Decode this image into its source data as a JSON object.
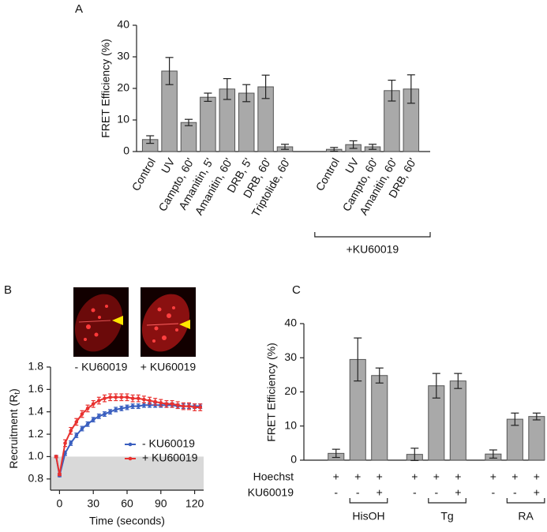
{
  "chart_data": [
    {
      "panel": "A",
      "type": "bar",
      "ylabel": "FRET Efficiency (%)",
      "categories": [
        "Control",
        "UV",
        "Campto, 60'",
        "Amanitin, 5'",
        "Amanitin, 60'",
        "DRB, 5'",
        "DRB, 60'",
        "Triptolide, 60'",
        null,
        "Control",
        "UV",
        "Campto, 60'",
        "Amanitin, 60'",
        "DRB, 60'"
      ],
      "values": [
        3.8,
        25.5,
        9.2,
        17.2,
        19.8,
        18.5,
        20.5,
        1.5,
        null,
        0.7,
        2.2,
        1.5,
        19.3,
        19.8
      ],
      "errors": [
        1.2,
        4.3,
        1.0,
        1.3,
        3.3,
        2.7,
        3.7,
        0.8,
        null,
        0.6,
        1.2,
        0.8,
        3.3,
        4.5
      ],
      "color": "#a9a9a9",
      "ylim": [
        0,
        40
      ],
      "yticks": [
        0,
        10,
        20,
        30,
        40
      ],
      "bracket_label": "+KU60019"
    },
    {
      "panel": "B",
      "type": "line",
      "images": [
        "- KU60019",
        "+ KU60019"
      ],
      "ylabel": "Recruitment (R",
      "ylabel_sub": "t",
      "ylabel_end": ")",
      "xlabel": "Time (seconds)",
      "x": [
        -3,
        0,
        5,
        10,
        15,
        20,
        25,
        30,
        35,
        40,
        45,
        50,
        55,
        60,
        65,
        70,
        75,
        80,
        85,
        90,
        95,
        100,
        105,
        110,
        115,
        120,
        125
      ],
      "series": [
        {
          "name": "- KU60019",
          "color": "#3a5fbf",
          "values": [
            1.0,
            0.83,
            1.03,
            1.12,
            1.19,
            1.25,
            1.29,
            1.33,
            1.36,
            1.38,
            1.4,
            1.42,
            1.43,
            1.44,
            1.45,
            1.45,
            1.46,
            1.46,
            1.46,
            1.46,
            1.46,
            1.46,
            1.45,
            1.45,
            1.45,
            1.45,
            1.45
          ],
          "errors": [
            0.01,
            0.01,
            0.02,
            0.02,
            0.02,
            0.02,
            0.02,
            0.02,
            0.02,
            0.02,
            0.02,
            0.02,
            0.02,
            0.02,
            0.02,
            0.02,
            0.02,
            0.02,
            0.02,
            0.02,
            0.02,
            0.02,
            0.02,
            0.02,
            0.02,
            0.02,
            0.02
          ]
        },
        {
          "name": "+ KU60019",
          "color": "#e8312f",
          "values": [
            1.0,
            0.84,
            1.12,
            1.23,
            1.31,
            1.38,
            1.43,
            1.47,
            1.5,
            1.52,
            1.53,
            1.53,
            1.53,
            1.53,
            1.52,
            1.52,
            1.51,
            1.5,
            1.49,
            1.48,
            1.47,
            1.47,
            1.46,
            1.45,
            1.45,
            1.44,
            1.44
          ],
          "errors": [
            0.01,
            0.01,
            0.03,
            0.03,
            0.03,
            0.03,
            0.03,
            0.03,
            0.03,
            0.03,
            0.03,
            0.03,
            0.03,
            0.03,
            0.03,
            0.03,
            0.03,
            0.03,
            0.03,
            0.03,
            0.03,
            0.03,
            0.03,
            0.03,
            0.03,
            0.03,
            0.03
          ]
        }
      ],
      "xlim": [
        -8,
        128
      ],
      "xticks": [
        0,
        30,
        60,
        90,
        120
      ],
      "ylim": [
        0.7,
        1.8
      ],
      "yticks": [
        0.8,
        {
          "value": 1,
          "label": "1.0"
        },
        1.2,
        1.4,
        1.6,
        1.8
      ],
      "shade_below": 1,
      "shade_color": "#d9d9d9"
    },
    {
      "panel": "C",
      "type": "bar",
      "ylabel": "FRET Efficiency (%)",
      "values": [
        2.0,
        29.5,
        24.8,
        null,
        1.7,
        21.8,
        23.2,
        null,
        1.8,
        12.0,
        12.8
      ],
      "errors": [
        1.2,
        6.3,
        2.2,
        null,
        1.8,
        3.6,
        2.2,
        null,
        1.2,
        1.8,
        1.0
      ],
      "rows": [
        {
          "label": "Hoechst",
          "marks": [
            "+",
            "+",
            "+",
            null,
            "+",
            "+",
            "+",
            null,
            "+",
            "+",
            "+"
          ]
        },
        {
          "label": "KU60019",
          "marks": [
            "-",
            "-",
            "+",
            null,
            "-",
            "-",
            "+",
            null,
            "-",
            "-",
            "+"
          ]
        }
      ],
      "groups": [
        "HisOH",
        "Tg",
        "RA"
      ],
      "color": "#a9a9a9",
      "ylim": [
        0,
        40
      ],
      "yticks": [
        0,
        10,
        20,
        30,
        40
      ]
    }
  ]
}
